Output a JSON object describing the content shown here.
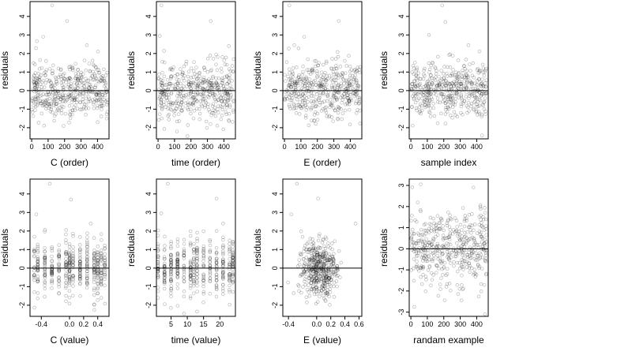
{
  "chart_data": [
    {
      "type": "scatter",
      "title": "",
      "xlabel": "C (order)",
      "ylabel": "residuals",
      "xlim": [
        -10,
        470
      ],
      "ylim": [
        -2.6,
        4.8
      ],
      "xticks": [
        0,
        100,
        200,
        300,
        400
      ],
      "yticks": [
        -2,
        -1,
        0,
        1,
        2,
        3,
        4
      ],
      "hline": 0,
      "points": {
        "x_dist": "uniform",
        "x_range": [
          0,
          460
        ],
        "n": 460,
        "y_center": 0,
        "y_spread": 0.75,
        "seed": 11
      },
      "outliers": [
        [
          125,
          4.6
        ],
        [
          215,
          3.75
        ],
        [
          70,
          2.9
        ],
        [
          335,
          2.45
        ]
      ]
    },
    {
      "type": "scatter",
      "title": "",
      "xlabel": "time (order)",
      "ylabel": "residuals",
      "xlim": [
        -10,
        470
      ],
      "ylim": [
        -2.6,
        4.8
      ],
      "xticks": [
        0,
        100,
        200,
        300,
        400
      ],
      "yticks": [
        -2,
        -1,
        0,
        1,
        2,
        3,
        4
      ],
      "hline": 0,
      "points": {
        "x_dist": "uniform",
        "x_range": [
          0,
          460
        ],
        "n": 460,
        "y_center": 0,
        "y_spread": 0.75,
        "seed": 23
      },
      "outliers": [
        [
          20,
          4.6
        ],
        [
          320,
          3.75
        ],
        [
          10,
          2.95
        ],
        [
          430,
          2.4
        ]
      ]
    },
    {
      "type": "scatter",
      "title": "",
      "xlabel": "E (order)",
      "ylabel": "residuals",
      "xlim": [
        -10,
        470
      ],
      "ylim": [
        -2.6,
        4.8
      ],
      "xticks": [
        0,
        100,
        200,
        300,
        400
      ],
      "yticks": [
        -2,
        -1,
        0,
        1,
        2,
        3,
        4
      ],
      "hline": 0,
      "points": {
        "x_dist": "uniform",
        "x_range": [
          0,
          460
        ],
        "n": 460,
        "y_center": 0,
        "y_spread": 0.75,
        "seed": 37
      },
      "outliers": [
        [
          30,
          4.6
        ],
        [
          330,
          3.75
        ],
        [
          120,
          2.9
        ],
        [
          60,
          2.45
        ]
      ]
    },
    {
      "type": "scatter",
      "title": "",
      "xlabel": "sample index",
      "ylabel": "residuals",
      "xlim": [
        -10,
        470
      ],
      "ylim": [
        -2.6,
        4.8
      ],
      "xticks": [
        0,
        100,
        200,
        300,
        400
      ],
      "yticks": [
        -2,
        -1,
        0,
        1,
        2,
        3,
        4
      ],
      "hline": 0,
      "points": {
        "x_dist": "uniform",
        "x_range": [
          0,
          460
        ],
        "n": 460,
        "y_center": 0,
        "y_spread": 0.75,
        "seed": 41
      },
      "outliers": [
        [
          190,
          4.6
        ],
        [
          210,
          3.7
        ],
        [
          110,
          3.0
        ],
        [
          350,
          2.45
        ]
      ]
    },
    {
      "type": "scatter",
      "title": "",
      "xlabel": "C (value)",
      "ylabel": "residuals",
      "xlim": [
        -0.56,
        0.56
      ],
      "ylim": [
        -2.6,
        4.8
      ],
      "xticks": [
        -0.4,
        0.0,
        0.2,
        0.4
      ],
      "xtick_labels": [
        "-0.4",
        "0.0",
        "0.2",
        "0.4"
      ],
      "yticks": [
        -2,
        -1,
        0,
        1,
        2,
        3,
        4
      ],
      "hline": 0,
      "points": {
        "x_dist": "discrete",
        "x_values": [
          -0.5,
          -0.45,
          -0.35,
          -0.25,
          -0.15,
          -0.05,
          0.0,
          0.05,
          0.15,
          0.25,
          0.35,
          0.4,
          0.45,
          0.5
        ],
        "n": 460,
        "y_center": 0,
        "y_spread": 0.75,
        "seed": 53
      },
      "outliers": [
        [
          -0.28,
          4.55
        ],
        [
          0.02,
          3.7
        ],
        [
          -0.47,
          2.9
        ],
        [
          0.3,
          2.4
        ]
      ]
    },
    {
      "type": "scatter",
      "title": "",
      "xlabel": "time (value)",
      "ylabel": "residuals",
      "xlim": [
        0.5,
        24.8
      ],
      "ylim": [
        -2.6,
        4.8
      ],
      "xticks": [
        5,
        10,
        15,
        20
      ],
      "yticks": [
        -2,
        -1,
        0,
        1,
        2,
        3,
        4
      ],
      "hline": 0,
      "points": {
        "x_dist": "discrete",
        "x_values": [
          1,
          3,
          5,
          7,
          9,
          11,
          12,
          13,
          15,
          17,
          19,
          21,
          23,
          24
        ],
        "n": 460,
        "y_center": 0,
        "y_spread": 0.75,
        "seed": 67
      },
      "outliers": [
        [
          4,
          4.55
        ],
        [
          19,
          3.75
        ],
        [
          2,
          2.95
        ],
        [
          21,
          2.4
        ]
      ]
    },
    {
      "type": "scatter",
      "title": "",
      "xlabel": "E (value)",
      "ylabel": "residuals",
      "xlim": [
        -0.48,
        0.64
      ],
      "ylim": [
        -2.6,
        4.8
      ],
      "xticks": [
        -0.4,
        0.0,
        0.2,
        0.4,
        0.6
      ],
      "xtick_labels": [
        "-0.4",
        "0.0",
        "0.2",
        "0.4",
        "0.6"
      ],
      "yticks": [
        -2,
        -1,
        0,
        1,
        2,
        3,
        4
      ],
      "hline": 0,
      "points": {
        "x_dist": "normal",
        "x_mean": 0.03,
        "x_sd": 0.14,
        "n": 460,
        "y_center": 0,
        "y_spread": 0.75,
        "seed": 79
      },
      "outliers": [
        [
          -0.28,
          4.55
        ],
        [
          0.02,
          3.75
        ],
        [
          -0.36,
          2.9
        ],
        [
          0.55,
          2.4
        ]
      ]
    },
    {
      "type": "scatter",
      "title": "",
      "xlabel": "randam example",
      "ylabel": "residuals",
      "xlim": [
        -10,
        470
      ],
      "ylim": [
        -3.2,
        3.3
      ],
      "xticks": [
        0,
        100,
        200,
        300,
        400
      ],
      "yticks": [
        -3,
        -2,
        -1,
        0,
        1,
        2,
        3
      ],
      "hline": 0,
      "points": {
        "x_dist": "uniform",
        "x_range": [
          0,
          460
        ],
        "n": 460,
        "y_center": 0,
        "y_spread": 0.95,
        "seed": 97
      },
      "outliers": [
        [
          60,
          3.05
        ],
        [
          380,
          2.9
        ],
        [
          20,
          -2.75
        ],
        [
          450,
          -3.1
        ]
      ]
    }
  ]
}
